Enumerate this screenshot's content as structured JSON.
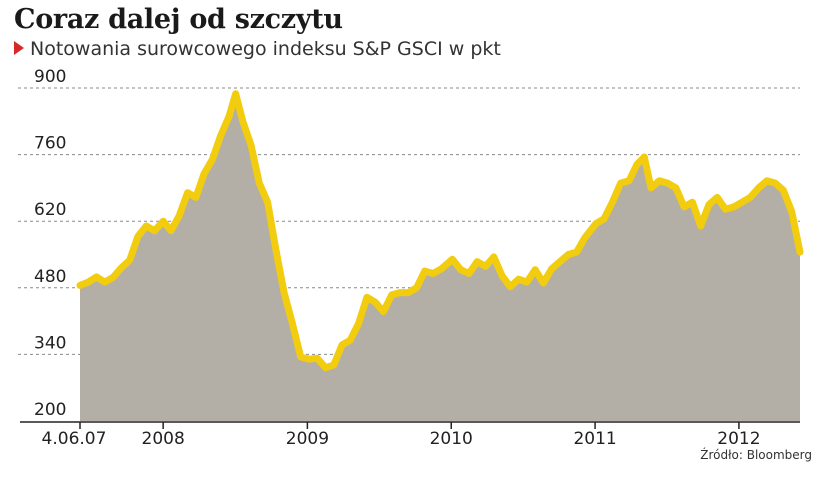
{
  "header": {
    "title": "Coraz dalej od szczytu",
    "subtitle": "Notowania surowcowego indeksu S&P GSCI w pkt",
    "marker_icon": "red-triangle-icon"
  },
  "footer": {
    "source": "Źródło: Bloomberg"
  },
  "colors": {
    "line": "#f2cc0f",
    "area": "#b3afa6",
    "grid": "#8a8a8a",
    "axis": "#222222",
    "marker": "#d42a2a"
  },
  "chart_data": {
    "type": "area",
    "title": "Coraz dalej od szczytu",
    "subtitle": "Notowania surowcowego indeksu S&P GSCI w pkt",
    "xlabel": "",
    "ylabel": "",
    "ylim": [
      200,
      900
    ],
    "yticks": [
      200,
      340,
      480,
      620,
      760,
      900
    ],
    "grid": true,
    "xtick_labels": [
      "4.06.07",
      "2008",
      "2009",
      "2010",
      "2011",
      "2012"
    ],
    "xtick_dates": [
      "2007-06-04",
      "2008-01-01",
      "2009-01-01",
      "2010-01-01",
      "2011-01-01",
      "2012-01-01"
    ],
    "xlim": [
      "2007-06-04",
      "2012-06-04"
    ],
    "series": [
      {
        "points": [
          [
            "2007-06-04",
            485
          ],
          [
            "2007-06-25",
            492
          ],
          [
            "2007-07-16",
            503
          ],
          [
            "2007-08-06",
            492
          ],
          [
            "2007-08-27",
            502
          ],
          [
            "2007-09-17",
            522
          ],
          [
            "2007-10-08",
            538
          ],
          [
            "2007-10-29",
            588
          ],
          [
            "2007-11-19",
            610
          ],
          [
            "2007-12-10",
            600
          ],
          [
            "2008-01-01",
            620
          ],
          [
            "2008-01-21",
            600
          ],
          [
            "2008-02-11",
            632
          ],
          [
            "2008-03-03",
            680
          ],
          [
            "2008-03-24",
            670
          ],
          [
            "2008-04-14",
            720
          ],
          [
            "2008-05-05",
            750
          ],
          [
            "2008-05-26",
            800
          ],
          [
            "2008-06-16",
            840
          ],
          [
            "2008-07-03",
            888
          ],
          [
            "2008-07-21",
            830
          ],
          [
            "2008-08-11",
            780
          ],
          [
            "2008-09-01",
            700
          ],
          [
            "2008-09-22",
            660
          ],
          [
            "2008-10-13",
            560
          ],
          [
            "2008-11-03",
            470
          ],
          [
            "2008-11-24",
            405
          ],
          [
            "2008-12-15",
            335
          ],
          [
            "2009-01-05",
            330
          ],
          [
            "2009-01-26",
            332
          ],
          [
            "2009-02-16",
            312
          ],
          [
            "2009-03-09",
            318
          ],
          [
            "2009-03-30",
            360
          ],
          [
            "2009-04-20",
            370
          ],
          [
            "2009-05-11",
            405
          ],
          [
            "2009-06-01",
            460
          ],
          [
            "2009-06-22",
            450
          ],
          [
            "2009-07-13",
            430
          ],
          [
            "2009-08-03",
            465
          ],
          [
            "2009-08-24",
            470
          ],
          [
            "2009-09-14",
            470
          ],
          [
            "2009-10-05",
            480
          ],
          [
            "2009-10-26",
            515
          ],
          [
            "2009-11-16",
            510
          ],
          [
            "2009-12-07",
            520
          ],
          [
            "2010-01-04",
            540
          ],
          [
            "2010-01-25",
            518
          ],
          [
            "2010-02-15",
            510
          ],
          [
            "2010-03-08",
            535
          ],
          [
            "2010-03-29",
            525
          ],
          [
            "2010-04-19",
            545
          ],
          [
            "2010-05-10",
            505
          ],
          [
            "2010-05-31",
            482
          ],
          [
            "2010-06-21",
            498
          ],
          [
            "2010-07-12",
            492
          ],
          [
            "2010-08-02",
            518
          ],
          [
            "2010-08-23",
            490
          ],
          [
            "2010-09-13",
            520
          ],
          [
            "2010-10-04",
            535
          ],
          [
            "2010-10-25",
            550
          ],
          [
            "2010-11-15",
            555
          ],
          [
            "2010-12-06",
            585
          ],
          [
            "2011-01-03",
            615
          ],
          [
            "2011-01-24",
            625
          ],
          [
            "2011-02-14",
            660
          ],
          [
            "2011-03-07",
            700
          ],
          [
            "2011-03-28",
            705
          ],
          [
            "2011-04-18",
            740
          ],
          [
            "2011-05-06",
            755
          ],
          [
            "2011-05-23",
            690
          ],
          [
            "2011-06-13",
            705
          ],
          [
            "2011-07-04",
            700
          ],
          [
            "2011-07-25",
            690
          ],
          [
            "2011-08-15",
            650
          ],
          [
            "2011-09-05",
            660
          ],
          [
            "2011-09-26",
            610
          ],
          [
            "2011-10-17",
            655
          ],
          [
            "2011-11-07",
            670
          ],
          [
            "2011-11-28",
            645
          ],
          [
            "2011-12-19",
            650
          ],
          [
            "2012-01-09",
            660
          ],
          [
            "2012-01-30",
            670
          ],
          [
            "2012-02-20",
            690
          ],
          [
            "2012-03-12",
            705
          ],
          [
            "2012-04-02",
            700
          ],
          [
            "2012-04-23",
            685
          ],
          [
            "2012-05-14",
            640
          ],
          [
            "2012-06-04",
            555
          ]
        ]
      }
    ]
  }
}
